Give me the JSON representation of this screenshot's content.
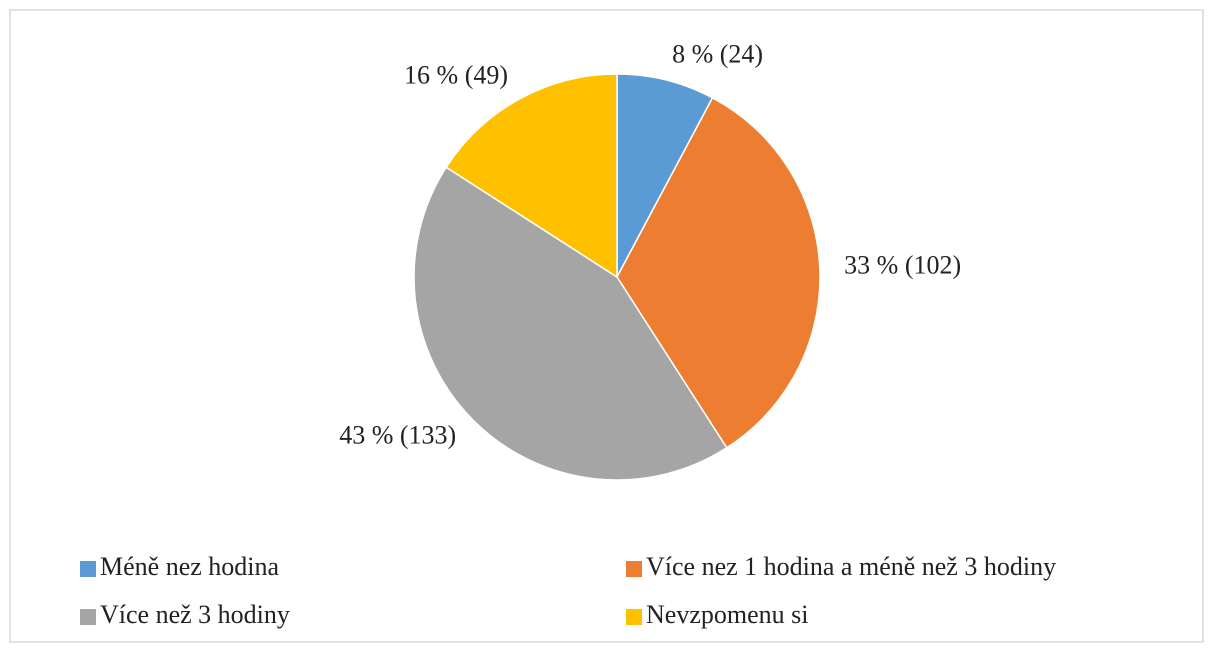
{
  "chart_data": {
    "type": "pie",
    "categories": [
      "Méně nez hodina",
      "Více nez 1 hodina a méně než 3 hodiny",
      "Více než 3 hodiny",
      "Nevzpomenu si"
    ],
    "values": [
      24,
      102,
      133,
      49
    ],
    "value_labels": [
      "8 % (24)",
      "33 % (102)",
      "43 % (133)",
      "16 % (49)"
    ],
    "colors": [
      "#5b9bd5",
      "#ed7d31",
      "#a5a5a5",
      "#ffc000"
    ],
    "legend": "bottom"
  }
}
